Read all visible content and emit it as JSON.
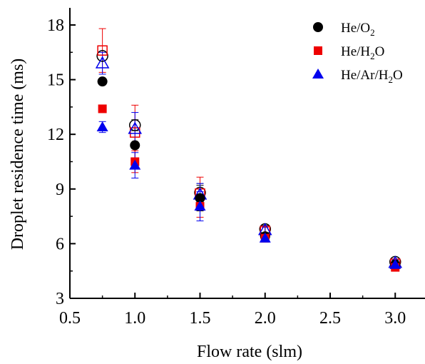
{
  "chart_data": {
    "type": "scatter",
    "title": "",
    "xlabel": "Flow rate (slm)",
    "ylabel": "Droplet residence time (ms)",
    "xlim": [
      0.5,
      3.2
    ],
    "ylim": [
      3,
      19
    ],
    "xticks": [
      0.5,
      1.0,
      1.5,
      2.0,
      2.5,
      3.0
    ],
    "xtick_labels": [
      "0.5",
      "1.0",
      "1.5",
      "2.0",
      "2.5",
      "3.0"
    ],
    "yticks": [
      3,
      6,
      9,
      12,
      15,
      18
    ],
    "ytick_labels": [
      "3",
      "6",
      "9",
      "12",
      "15",
      "18"
    ],
    "legend_position": "top-right",
    "grid": false,
    "series": [
      {
        "name": "He/O2",
        "label_main": "He/O",
        "label_sub": "2",
        "label_tail": "",
        "color": "#000000",
        "marker": "circle",
        "filled": {
          "x": [
            0.75,
            1.0,
            1.5,
            2.0,
            3.0
          ],
          "y": [
            14.9,
            11.4,
            8.5,
            6.4,
            4.85
          ],
          "err": [
            0,
            0,
            0.7,
            0,
            0
          ]
        },
        "open": {
          "x": [
            0.75,
            1.0,
            1.5,
            2.0,
            3.0
          ],
          "y": [
            16.3,
            12.5,
            8.8,
            6.8,
            5.0
          ],
          "err": [
            0,
            0.3,
            0.5,
            0.2,
            0.1
          ]
        }
      },
      {
        "name": "He/H2O",
        "label_main": "He/H",
        "label_sub": "2",
        "label_tail": "O",
        "color": "#ee0000",
        "marker": "square",
        "filled": {
          "x": [
            0.75,
            1.0,
            1.5,
            2.0,
            3.0
          ],
          "y": [
            13.4,
            10.5,
            8.05,
            6.3,
            4.7
          ],
          "err": [
            0,
            0.6,
            0.6,
            0,
            0
          ]
        },
        "open": {
          "x": [
            0.75,
            1.0,
            1.5,
            2.0,
            3.0
          ],
          "y": [
            16.6,
            12.1,
            8.75,
            6.7,
            4.9
          ],
          "err": [
            1.2,
            1.5,
            0.9,
            0.2,
            0.1
          ]
        }
      },
      {
        "name": "He/Ar/H2O",
        "label_main": "He/Ar/H",
        "label_sub": "2",
        "label_tail": "O",
        "color": "#0000ee",
        "marker": "triangle",
        "filled": {
          "x": [
            0.75,
            1.0,
            1.5,
            2.0,
            3.0
          ],
          "y": [
            12.4,
            10.3,
            8.05,
            6.3,
            4.85
          ],
          "err": [
            0.3,
            0.7,
            0.8,
            0,
            0
          ]
        },
        "open": {
          "x": [
            0.75,
            1.0,
            1.5,
            2.0,
            3.0
          ],
          "y": [
            15.9,
            12.3,
            8.7,
            6.75,
            4.95
          ],
          "err": [
            0.6,
            0.9,
            0.6,
            0.2,
            0.1
          ]
        }
      }
    ]
  }
}
